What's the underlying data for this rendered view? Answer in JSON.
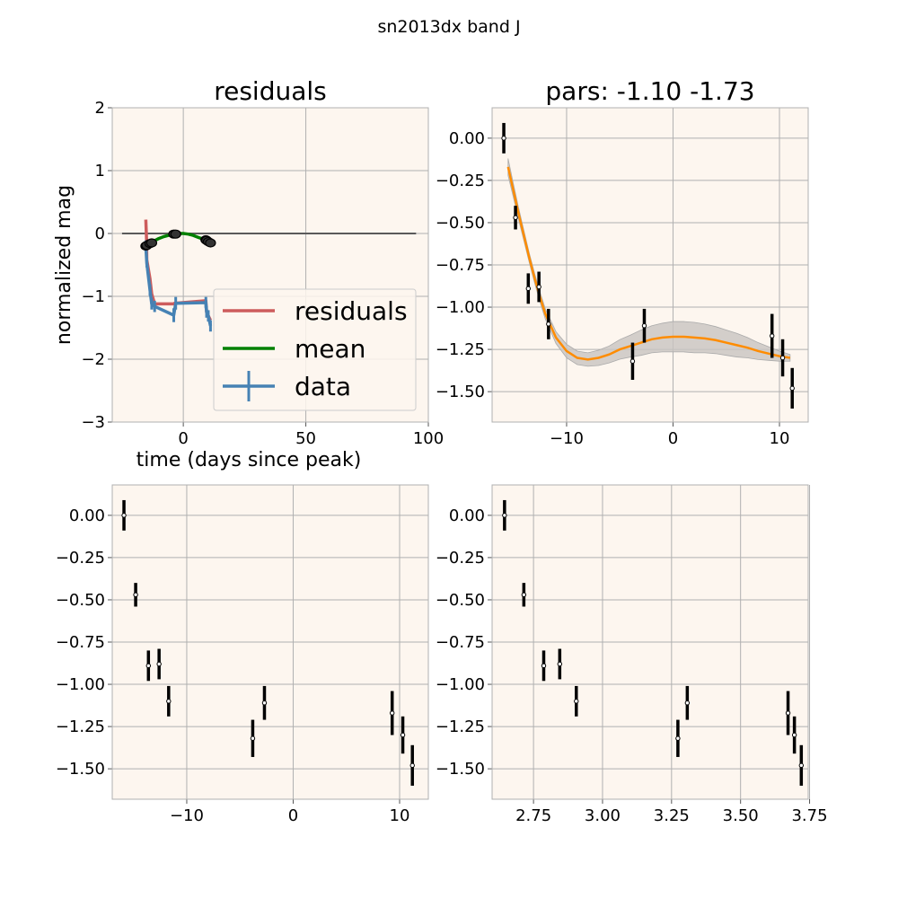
{
  "figure": {
    "suptitle": "sn2013dx band J"
  },
  "colors": {
    "panel_bg": "#fdf6ef",
    "grid": "#b0b0b0",
    "spine": "#b0b0b0",
    "residuals": "#cd5c5c",
    "mean": "#008000",
    "data": "#4682b4",
    "fit": "#ff8c00",
    "band": "#c8c4c0",
    "points": "#000000",
    "zero_line": "#5a5a5a"
  },
  "chart_data": [
    {
      "id": "residuals",
      "type": "line",
      "title": "residuals",
      "xlabel": "time (days since peak)",
      "ylabel": "normalized mag",
      "xlim": [
        -29,
        100
      ],
      "ylim": [
        -3,
        2
      ],
      "xticks": [
        0,
        50,
        100
      ],
      "xtick_labels": [
        "0",
        "50",
        "100"
      ],
      "yticks": [
        -3,
        -2,
        -1,
        0,
        1,
        2
      ],
      "ytick_labels": [
        "−3",
        "−2",
        "−1",
        "0",
        "1",
        "2"
      ],
      "grid": true,
      "legend": {
        "placement": "lower-right",
        "entries": [
          "residuals",
          "mean",
          "data"
        ]
      },
      "zero_line": {
        "x": [
          -25,
          95
        ],
        "y": 0
      },
      "series": [
        {
          "name": "residuals",
          "style": "line",
          "x": [
            -15.3,
            -15.0,
            -14.9,
            -13.6,
            -12.9,
            -11.7,
            -3.9,
            -3.6,
            9.2,
            9.5,
            10.2,
            11.1
          ],
          "y": [
            0.22,
            -0.1,
            -0.42,
            -0.72,
            -0.96,
            -1.12,
            -1.12,
            -1.11,
            -1.07,
            -1.25,
            -1.31,
            -1.38
          ]
        },
        {
          "name": "mean",
          "style": "line",
          "x": [
            -15.3,
            -14.5,
            -13.5,
            -12.0,
            -10.0,
            -8.0,
            -6.0,
            -4.0,
            -2.0,
            0.0,
            2.0,
            4.0,
            6.0,
            8.0,
            9.5,
            10.5,
            11.3
          ],
          "y": [
            -0.2,
            -0.17,
            -0.15,
            -0.12,
            -0.08,
            -0.05,
            -0.03,
            -0.01,
            0.0,
            0.0,
            -0.01,
            -0.03,
            -0.06,
            -0.09,
            -0.12,
            -0.14,
            -0.16
          ]
        },
        {
          "name": "data",
          "style": "errorbar-line",
          "x": [
            -15.3,
            -14.9,
            -13.6,
            -12.9,
            -11.7,
            -3.9,
            -3.1,
            9.2,
            9.5,
            10.2,
            11.1
          ],
          "y": [
            -0.2,
            -0.47,
            -0.9,
            -1.12,
            -1.16,
            -1.3,
            -1.11,
            -1.1,
            -1.25,
            -1.31,
            -1.47
          ],
          "yerr": [
            0.09,
            0.07,
            0.09,
            0.09,
            0.09,
            0.11,
            0.1,
            0.09,
            0.09,
            0.09,
            0.09
          ]
        },
        {
          "name": "mean-markers",
          "style": "markers",
          "x": [
            -15.3,
            -14.9,
            -13.6,
            -12.9,
            -3.9,
            -3.1,
            9.2,
            9.5,
            10.2,
            11.1
          ],
          "y": [
            -0.2,
            -0.19,
            -0.16,
            -0.15,
            -0.01,
            -0.01,
            -0.1,
            -0.11,
            -0.13,
            -0.15
          ]
        }
      ]
    },
    {
      "id": "fit",
      "type": "line",
      "title": "pars: -1.10 -1.73",
      "xlabel": "",
      "ylabel": "",
      "xlim": [
        -17,
        12.7
      ],
      "ylim": [
        -1.68,
        0.18
      ],
      "xticks": [
        -10,
        0,
        10
      ],
      "xtick_labels": [
        "−10",
        "0",
        "10"
      ],
      "yticks": [
        0.0,
        -0.25,
        -0.5,
        -0.75,
        -1.0,
        -1.25,
        -1.5
      ],
      "ytick_labels": [
        "0.00",
        "−0.25",
        "−0.50",
        "−0.75",
        "−1.00",
        "−1.25",
        "−1.50"
      ],
      "grid": true,
      "series": [
        {
          "name": "fit",
          "style": "line-band",
          "x": [
            -15.5,
            -15.0,
            -14.5,
            -14.0,
            -13.5,
            -13.0,
            -12.5,
            -12.0,
            -11.0,
            -10.0,
            -9.0,
            -8.0,
            -7.0,
            -6.0,
            -5.0,
            -4.0,
            -3.0,
            -2.0,
            -1.0,
            0.0,
            1.0,
            2.0,
            3.0,
            4.0,
            5.0,
            6.0,
            7.0,
            8.0,
            9.0,
            10.0,
            11.0
          ],
          "y": [
            -0.17,
            -0.31,
            -0.45,
            -0.58,
            -0.71,
            -0.83,
            -0.94,
            -1.04,
            -1.18,
            -1.26,
            -1.3,
            -1.31,
            -1.3,
            -1.28,
            -1.25,
            -1.23,
            -1.21,
            -1.19,
            -1.18,
            -1.175,
            -1.175,
            -1.18,
            -1.185,
            -1.195,
            -1.21,
            -1.225,
            -1.24,
            -1.26,
            -1.275,
            -1.29,
            -1.3
          ],
          "band": [
            0.05,
            0.04,
            0.035,
            0.03,
            0.028,
            0.028,
            0.03,
            0.03,
            0.035,
            0.04,
            0.04,
            0.04,
            0.045,
            0.05,
            0.058,
            0.065,
            0.075,
            0.08,
            0.085,
            0.09,
            0.09,
            0.09,
            0.085,
            0.08,
            0.075,
            0.07,
            0.06,
            0.05,
            0.04,
            0.03,
            0.02
          ]
        },
        {
          "name": "points",
          "style": "errorbar",
          "x": [
            -15.9,
            -14.8,
            -13.6,
            -12.6,
            -11.7,
            -3.8,
            -2.7,
            9.3,
            10.3,
            11.2
          ],
          "y": [
            0.0,
            -0.47,
            -0.89,
            -0.88,
            -1.1,
            -1.32,
            -1.11,
            -1.17,
            -1.3,
            -1.48
          ],
          "yerr": [
            0.09,
            0.07,
            0.09,
            0.09,
            0.09,
            0.11,
            0.1,
            0.13,
            0.11,
            0.12
          ]
        }
      ]
    },
    {
      "id": "points-time",
      "type": "scatter",
      "title": "",
      "xlabel": "",
      "ylabel": "",
      "xlim": [
        -17,
        12.7
      ],
      "ylim": [
        -1.68,
        0.18
      ],
      "xticks": [
        -10,
        0,
        10
      ],
      "xtick_labels": [
        "−10",
        "0",
        "10"
      ],
      "yticks": [
        0.0,
        -0.25,
        -0.5,
        -0.75,
        -1.0,
        -1.25,
        -1.5
      ],
      "ytick_labels": [
        "0.00",
        "−0.25",
        "−0.50",
        "−0.75",
        "−1.00",
        "−1.25",
        "−1.50"
      ],
      "grid": true,
      "series": [
        {
          "name": "points",
          "style": "errorbar",
          "x": [
            -15.9,
            -14.8,
            -13.6,
            -12.6,
            -11.7,
            -3.8,
            -2.7,
            9.3,
            10.3,
            11.2
          ],
          "y": [
            0.0,
            -0.47,
            -0.89,
            -0.88,
            -1.1,
            -1.32,
            -1.11,
            -1.17,
            -1.3,
            -1.48
          ],
          "yerr": [
            0.09,
            0.07,
            0.09,
            0.09,
            0.09,
            0.11,
            0.1,
            0.13,
            0.11,
            0.12
          ]
        }
      ]
    },
    {
      "id": "points-log",
      "type": "scatter",
      "title": "",
      "xlabel": "",
      "ylabel": "",
      "xlim": [
        2.6,
        3.745
      ],
      "ylim": [
        -1.68,
        0.18
      ],
      "xticks": [
        2.75,
        3.0,
        3.25,
        3.5,
        3.75
      ],
      "xtick_labels": [
        "2.75",
        "3.00",
        "3.25",
        "3.50",
        "3.75"
      ],
      "yticks": [
        0.0,
        -0.25,
        -0.5,
        -0.75,
        -1.0,
        -1.25,
        -1.5
      ],
      "ytick_labels": [
        "0.00",
        "−0.25",
        "−0.50",
        "−0.75",
        "−1.00",
        "−1.25",
        "−1.50"
      ],
      "grid": true,
      "series": [
        {
          "name": "points",
          "style": "errorbar",
          "x": [
            2.645,
            2.715,
            2.787,
            2.845,
            2.905,
            3.273,
            3.307,
            3.672,
            3.695,
            3.72
          ],
          "y": [
            0.0,
            -0.47,
            -0.89,
            -0.88,
            -1.1,
            -1.32,
            -1.11,
            -1.17,
            -1.3,
            -1.48
          ],
          "yerr": [
            0.09,
            0.07,
            0.09,
            0.09,
            0.09,
            0.11,
            0.1,
            0.13,
            0.11,
            0.12
          ]
        }
      ]
    }
  ]
}
